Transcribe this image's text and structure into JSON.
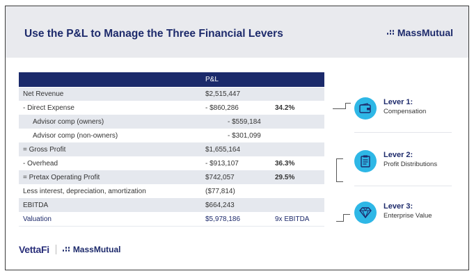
{
  "slide": {
    "title": "Use the P&L to Manage the Three Financial Levers",
    "brand": "MassMutual"
  },
  "table": {
    "header": "P&L",
    "rows": [
      {
        "label": "Net Revenue",
        "value": "$2,515,447",
        "pct": ""
      },
      {
        "label": "- Direct Expense",
        "value": "- $860,286",
        "pct": "34.2%"
      },
      {
        "label": "Advisor comp (owners)",
        "value": "- $559,184",
        "pct": ""
      },
      {
        "label": "Advisor comp (non-owners)",
        "value": "- $301,099",
        "pct": ""
      },
      {
        "label": "= Gross Profit",
        "value": "$1,655,164",
        "pct": ""
      },
      {
        "label": "- Overhead",
        "value": "- $913,107",
        "pct": "36.3%"
      },
      {
        "label": "= Pretax Operating Profit",
        "value": "$742,057",
        "pct": "29.5%"
      },
      {
        "label": "Less interest, depreciation, amortization",
        "value": "($77,814)",
        "pct": ""
      },
      {
        "label": "EBITDA",
        "value": "$664,243",
        "pct": ""
      },
      {
        "label": "Valuation",
        "value": "$5,978,186",
        "pct": "9x EBITDA"
      }
    ]
  },
  "levers": [
    {
      "title": "Lever 1:",
      "subtitle": "Compensation",
      "icon": "wallet-icon"
    },
    {
      "title": "Lever 2:",
      "subtitle": "Profit Distributions",
      "icon": "document-icon"
    },
    {
      "title": "Lever 3:",
      "subtitle": "Enterprise Value",
      "icon": "diamond-icon"
    }
  ],
  "footer": {
    "vettafi": "VettaFi",
    "brand": "MassMutual"
  },
  "colors": {
    "navy": "#1d2a6b",
    "header_bg": "#e9eaee",
    "row_shade": "#e5e8ee",
    "lever_accent": "#2eb7e6"
  }
}
